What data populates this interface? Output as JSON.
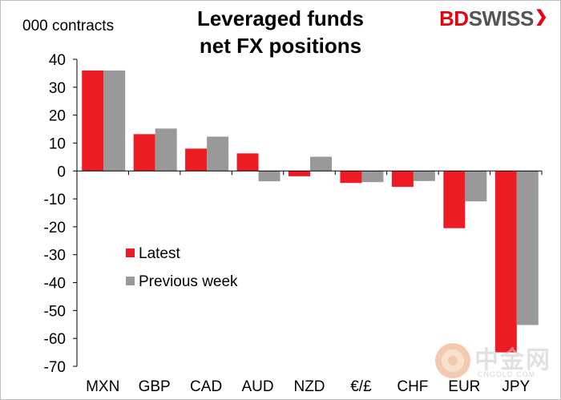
{
  "title_line1": "Leveraged funds",
  "title_line2": "net FX positions",
  "unit_label": "000 contracts",
  "logo": {
    "part1": "BD",
    "part2": "SWISS"
  },
  "watermark": {
    "text": "中金网",
    "sub": "CNGOLD.COM"
  },
  "colors": {
    "latest": "#ed1c24",
    "previous": "#999999",
    "axis": "#000000"
  },
  "chart_data": {
    "type": "bar",
    "categories": [
      "MXN",
      "GBP",
      "CAD",
      "AUD",
      "NZD",
      "€/£",
      "CHF",
      "EUR",
      "JPY"
    ],
    "series": [
      {
        "name": "Latest",
        "values": [
          36,
          13.2,
          8,
          6.3,
          -1.9,
          -4.3,
          -5.7,
          -20.5,
          -65
        ]
      },
      {
        "name": "Previous week",
        "values": [
          36,
          15.2,
          12.3,
          -3.7,
          5.1,
          -4,
          -3.6,
          -10.9,
          -55.2
        ]
      }
    ],
    "ylim": [
      -70,
      40
    ],
    "yticks": [
      40,
      30,
      20,
      10,
      0,
      -10,
      -20,
      -30,
      -40,
      -50,
      -60,
      -70
    ],
    "ylabel": "000 contracts",
    "legend_position": "center-left",
    "grid": false
  }
}
